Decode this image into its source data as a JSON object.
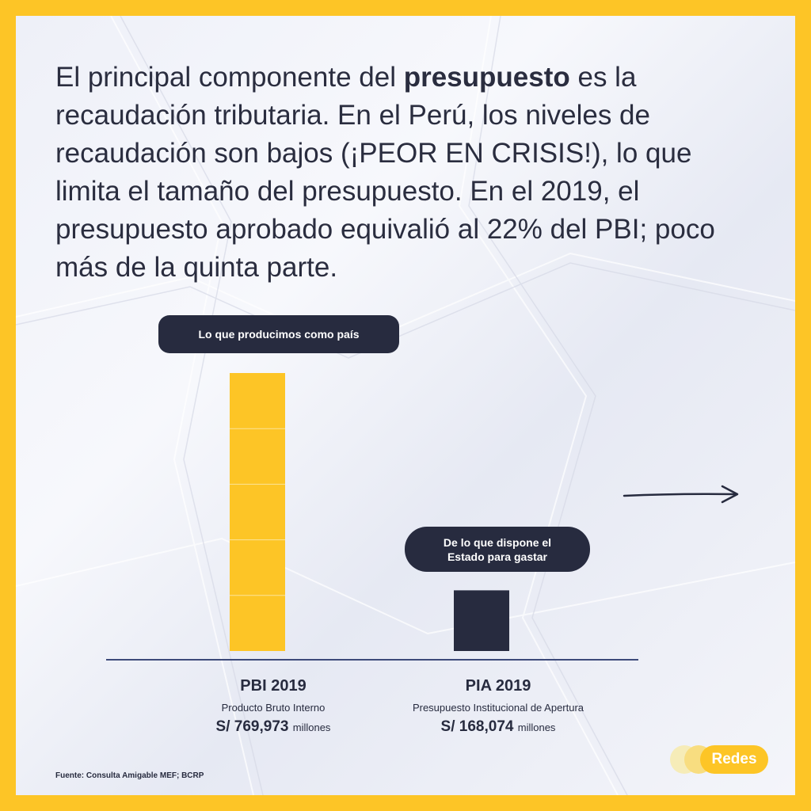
{
  "headline": {
    "part1": "El principal componente del ",
    "bold": "presupuesto",
    "part2": " es la recaudación tributaria. En el Perú, los niveles de recaudación son bajos (¡PEOR EN CRISIS!), lo que limita el tamaño del presupuesto. En el 2019, el presupuesto aprobado equivalió al 22% del PBI; poco más de la quinta parte."
  },
  "annotations": {
    "pbi": "Lo que producimos como país",
    "pia_line1": "De lo que dispone el",
    "pia_line2": "Estado para gastar"
  },
  "chart_data": {
    "type": "bar",
    "categories": [
      "PBI 2019",
      "PIA 2019"
    ],
    "values": [
      769973,
      168074
    ],
    "series": [
      {
        "values": [
          769973,
          168074
        ]
      }
    ],
    "units": "millones",
    "category_details": [
      {
        "title": "PBI 2019",
        "subtitle": "Producto Bruto Interno",
        "value_label": "S/ 769,973",
        "unit_label": "millones"
      },
      {
        "title": "PIA 2019",
        "subtitle": "Presupuesto Institucional de Apertura",
        "value_label": "S/ 168,074",
        "unit_label": "millones"
      }
    ],
    "colors": [
      "#FDC526",
      "#272b3f"
    ],
    "axis_color": "#3d4a7a",
    "grid": false,
    "ylim": [
      0,
      769973
    ]
  },
  "source": "Fuente: Consulta Amigable MEF; BCRP",
  "logo": {
    "text": "Redes"
  },
  "icons": {
    "arrow": "arrow-right-icon"
  }
}
